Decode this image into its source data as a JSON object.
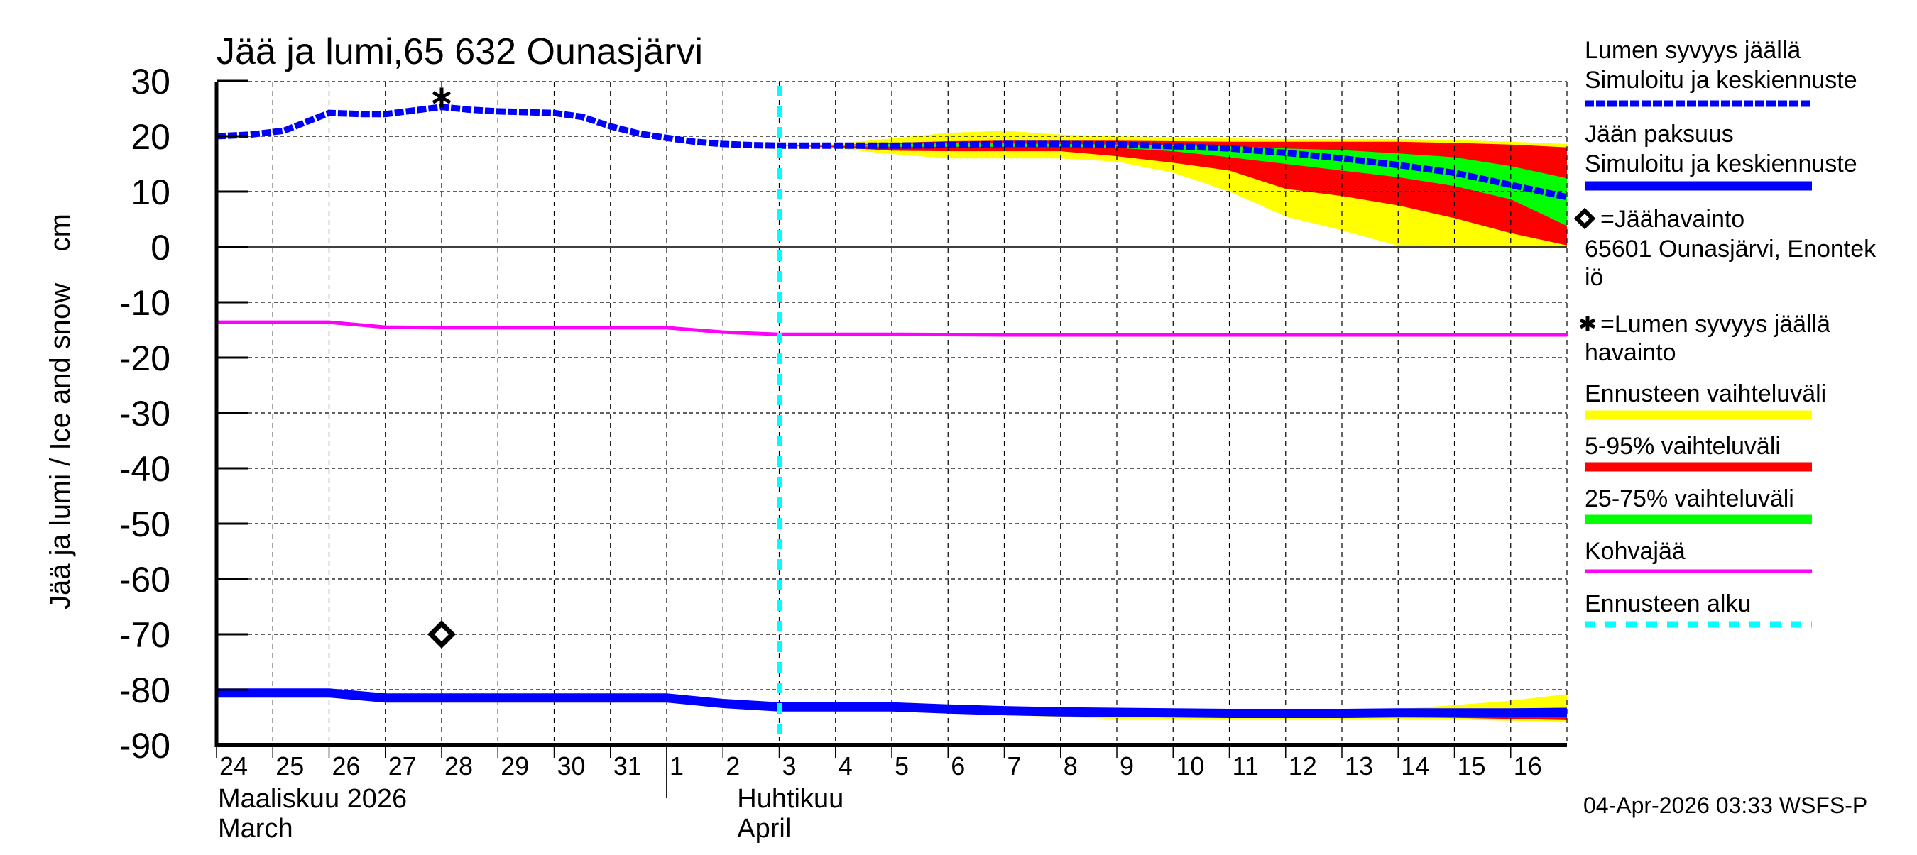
{
  "title": "Jää ja lumi,65 632 Ounasjärvi",
  "y_axis_label": "Jää ja lumi / Ice and snow    cm",
  "timestamp": "04-Apr-2026 03:33 WSFS-P",
  "months": [
    {
      "line1": "Maaliskuu 2026",
      "line2": "March",
      "day_index": 0
    },
    {
      "line1": "Huhtikuu",
      "line2": "April",
      "day_index": 9
    }
  ],
  "legend": [
    {
      "id": "snow",
      "lines": [
        "Lumen syvyys jäällä",
        "Simuloitu ja keskiennuste"
      ],
      "swatch": "dashed-blue"
    },
    {
      "id": "ice",
      "lines": [
        "Jään paksuus",
        "Simuloitu ja keskiennuste"
      ],
      "swatch": "thick-blue"
    },
    {
      "id": "ice-obs",
      "lines": [
        "=Jäähavainto",
        "65601 Ounasjärvi, Enontek",
        "iö"
      ],
      "swatch": "diamond"
    },
    {
      "id": "snow-obs",
      "lines": [
        "=Lumen syvyys jäällä",
        "havainto"
      ],
      "swatch": "asterisk"
    },
    {
      "id": "range-all",
      "lines": [
        "Ennusteen vaihteluväli"
      ],
      "swatch": "yellow"
    },
    {
      "id": "range-5-95",
      "lines": [
        "5-95% vaihteluväli"
      ],
      "swatch": "red"
    },
    {
      "id": "range-25-75",
      "lines": [
        "25-75% vaihteluväli"
      ],
      "swatch": "green"
    },
    {
      "id": "slush",
      "lines": [
        "Kohvajää"
      ],
      "swatch": "magenta"
    },
    {
      "id": "forecast-start",
      "lines": [
        "Ennusteen alku"
      ],
      "swatch": "dashed-cyan"
    }
  ],
  "colors": {
    "snow": "#0000ff",
    "ice": "#0000ff",
    "yellow": "#ffff00",
    "red": "#ff0000",
    "green": "#00ff00",
    "magenta": "#ff00ff",
    "cyan": "#00ffff",
    "grid": "#000000"
  },
  "chart_data": {
    "type": "line",
    "title": "Jää ja lumi,65 632 Ounasjärvi",
    "xlabel": "Maaliskuu 2026 March / Huhtikuu April",
    "ylabel": "Jää ja lumi / Ice and snow cm",
    "ylim": [
      -90,
      30
    ],
    "yticks": [
      30,
      20,
      10,
      0,
      -10,
      -20,
      -30,
      -40,
      -50,
      -60,
      -70,
      -80,
      -90
    ],
    "x_tick_labels": [
      "24",
      "25",
      "26",
      "27",
      "28",
      "29",
      "30",
      "31",
      "1",
      "2",
      "3",
      "4",
      "5",
      "6",
      "7",
      "8",
      "9",
      "10",
      "11",
      "12",
      "13",
      "14",
      "15",
      "16"
    ],
    "x_range_days": [
      0,
      24
    ],
    "forecast_start_day": 10,
    "grid": true,
    "legend_position": "right",
    "series": [
      {
        "name": "Lumen syvyys jäällä (simuloitu ja keskiennuste)",
        "style": "dashed",
        "color": "#0000ff",
        "x": [
          0,
          0.6,
          1.2,
          2,
          2.6,
          3,
          4,
          4.5,
          5,
          6,
          6.5,
          7,
          7.5,
          8,
          8.5,
          9,
          9.5,
          10,
          11,
          12,
          13,
          14,
          15,
          16,
          17,
          18,
          19,
          20,
          21,
          22,
          23,
          24
        ],
        "values": [
          20,
          20.3,
          21,
          24.2,
          24,
          24,
          25.3,
          24.8,
          24.5,
          24.2,
          23.5,
          21.8,
          20.5,
          19.7,
          19,
          18.6,
          18.4,
          18.3,
          18.3,
          18.3,
          18.4,
          18.6,
          18.6,
          18.5,
          18.2,
          17.8,
          17,
          16,
          14.8,
          13.4,
          11.2,
          9
        ]
      },
      {
        "name": "Jään paksuus (simuloitu ja keskiennuste)",
        "style": "thick",
        "color": "#0000ff",
        "x": [
          0,
          1,
          2,
          3,
          4,
          5,
          6,
          7,
          8,
          9,
          10,
          11,
          12,
          13,
          14,
          15,
          16,
          17,
          18,
          19,
          20,
          21,
          22,
          23,
          24
        ],
        "values": [
          -80.6,
          -80.6,
          -80.6,
          -81.5,
          -81.5,
          -81.5,
          -81.5,
          -81.5,
          -81.5,
          -82.5,
          -83.1,
          -83.1,
          -83.1,
          -83.5,
          -83.8,
          -84,
          -84.1,
          -84.2,
          -84.3,
          -84.3,
          -84.3,
          -84.2,
          -84.2,
          -84.2,
          -84.1
        ]
      },
      {
        "name": "Kohvajää",
        "style": "solid",
        "color": "#ff00ff",
        "x": [
          0,
          2,
          3,
          4,
          5,
          6,
          7,
          8,
          9,
          10,
          12,
          14,
          16,
          18,
          20,
          22,
          24
        ],
        "values": [
          -13.6,
          -13.6,
          -14.5,
          -14.6,
          -14.6,
          -14.6,
          -14.6,
          -14.6,
          -15.4,
          -15.8,
          -15.8,
          -15.9,
          -15.9,
          -15.9,
          -15.9,
          -15.9,
          -15.9
        ]
      }
    ],
    "bands_snow": {
      "x": [
        10,
        11,
        12,
        13,
        14,
        15,
        16,
        17,
        18,
        19,
        20,
        21,
        22,
        23,
        24
      ],
      "yellow_upper": [
        18.3,
        18.6,
        19.6,
        20.6,
        21,
        20.3,
        20,
        19.8,
        19.6,
        19.5,
        19.5,
        19.5,
        19.3,
        19,
        18.6
      ],
      "yellow_lower": [
        18.3,
        17.8,
        16.8,
        16,
        16,
        16,
        15.4,
        13.4,
        10,
        5.5,
        3,
        0.2,
        0,
        0,
        0
      ],
      "red_upper": [
        18.3,
        18.4,
        18.8,
        19.1,
        19.2,
        19.2,
        19.2,
        19.1,
        19,
        19,
        19,
        19,
        18.8,
        18.5,
        18
      ],
      "red_lower": [
        18.3,
        18,
        17.4,
        17.3,
        17.3,
        17.3,
        16.4,
        15.2,
        13.8,
        10.5,
        9.2,
        7.5,
        5.2,
        2.5,
        0.3
      ],
      "green_upper": [
        18.3,
        18.4,
        18.6,
        18.7,
        18.7,
        18.6,
        18.5,
        18.3,
        18.2,
        17.8,
        17.5,
        16.9,
        16.2,
        14.6,
        12.4
      ],
      "green_lower": [
        18.3,
        18.2,
        18.1,
        18.1,
        18.1,
        18.1,
        17.9,
        17.3,
        16.2,
        15,
        13.8,
        12.6,
        11,
        8.6,
        3.8
      ]
    },
    "bands_ice": {
      "x": [
        14,
        16,
        18,
        20,
        21,
        22,
        23,
        24
      ],
      "yellow_upper": [
        -84.1,
        -84.1,
        -84.2,
        -84.2,
        -83.5,
        -82.8,
        -82,
        -80.8
      ],
      "yellow_lower": [
        -84.6,
        -85.3,
        -85.3,
        -85.3,
        -85.3,
        -85.4,
        -85.6,
        -85.8
      ],
      "red_lower": [
        -84.4,
        -84.9,
        -85,
        -85,
        -85,
        -85.1,
        -85.3,
        -85.5
      ]
    },
    "observations": [
      {
        "type": "snow-depth",
        "marker": "asterisk",
        "day": 4,
        "value": 27
      },
      {
        "type": "ice-thickness",
        "marker": "diamond",
        "day": 4,
        "value": -70
      }
    ]
  }
}
